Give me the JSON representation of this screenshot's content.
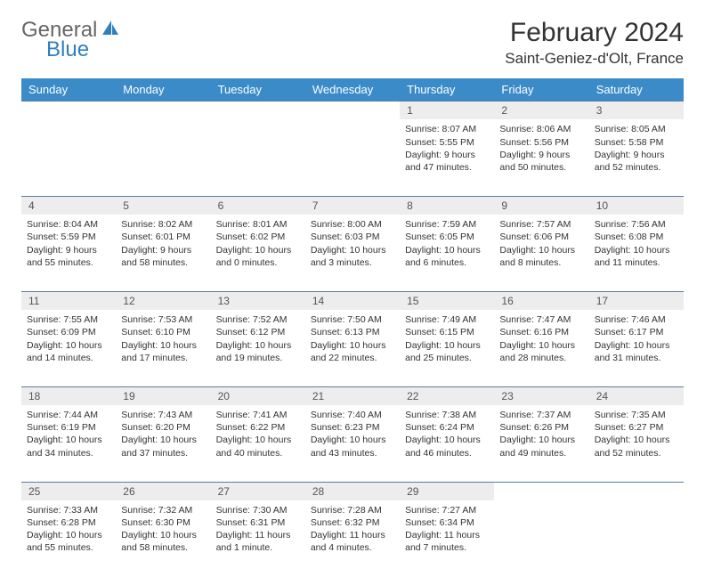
{
  "brand": {
    "first": "General",
    "second": "Blue"
  },
  "title": "February 2024",
  "location": "Saint-Geniez-d'Olt, France",
  "colors": {
    "header_bg": "#3b8bc9",
    "header_text": "#ffffff",
    "daynum_bg": "#ededed",
    "row_border": "#5a7ca0",
    "body_text": "#333333",
    "brand_blue": "#2f7fbf",
    "brand_grey": "#666666"
  },
  "weekdays": [
    "Sunday",
    "Monday",
    "Tuesday",
    "Wednesday",
    "Thursday",
    "Friday",
    "Saturday"
  ],
  "weeks": [
    [
      null,
      null,
      null,
      null,
      {
        "n": "1",
        "sunrise": "8:07 AM",
        "sunset": "5:55 PM",
        "daylight": "9 hours and 47 minutes."
      },
      {
        "n": "2",
        "sunrise": "8:06 AM",
        "sunset": "5:56 PM",
        "daylight": "9 hours and 50 minutes."
      },
      {
        "n": "3",
        "sunrise": "8:05 AM",
        "sunset": "5:58 PM",
        "daylight": "9 hours and 52 minutes."
      }
    ],
    [
      {
        "n": "4",
        "sunrise": "8:04 AM",
        "sunset": "5:59 PM",
        "daylight": "9 hours and 55 minutes."
      },
      {
        "n": "5",
        "sunrise": "8:02 AM",
        "sunset": "6:01 PM",
        "daylight": "9 hours and 58 minutes."
      },
      {
        "n": "6",
        "sunrise": "8:01 AM",
        "sunset": "6:02 PM",
        "daylight": "10 hours and 0 minutes."
      },
      {
        "n": "7",
        "sunrise": "8:00 AM",
        "sunset": "6:03 PM",
        "daylight": "10 hours and 3 minutes."
      },
      {
        "n": "8",
        "sunrise": "7:59 AM",
        "sunset": "6:05 PM",
        "daylight": "10 hours and 6 minutes."
      },
      {
        "n": "9",
        "sunrise": "7:57 AM",
        "sunset": "6:06 PM",
        "daylight": "10 hours and 8 minutes."
      },
      {
        "n": "10",
        "sunrise": "7:56 AM",
        "sunset": "6:08 PM",
        "daylight": "10 hours and 11 minutes."
      }
    ],
    [
      {
        "n": "11",
        "sunrise": "7:55 AM",
        "sunset": "6:09 PM",
        "daylight": "10 hours and 14 minutes."
      },
      {
        "n": "12",
        "sunrise": "7:53 AM",
        "sunset": "6:10 PM",
        "daylight": "10 hours and 17 minutes."
      },
      {
        "n": "13",
        "sunrise": "7:52 AM",
        "sunset": "6:12 PM",
        "daylight": "10 hours and 19 minutes."
      },
      {
        "n": "14",
        "sunrise": "7:50 AM",
        "sunset": "6:13 PM",
        "daylight": "10 hours and 22 minutes."
      },
      {
        "n": "15",
        "sunrise": "7:49 AM",
        "sunset": "6:15 PM",
        "daylight": "10 hours and 25 minutes."
      },
      {
        "n": "16",
        "sunrise": "7:47 AM",
        "sunset": "6:16 PM",
        "daylight": "10 hours and 28 minutes."
      },
      {
        "n": "17",
        "sunrise": "7:46 AM",
        "sunset": "6:17 PM",
        "daylight": "10 hours and 31 minutes."
      }
    ],
    [
      {
        "n": "18",
        "sunrise": "7:44 AM",
        "sunset": "6:19 PM",
        "daylight": "10 hours and 34 minutes."
      },
      {
        "n": "19",
        "sunrise": "7:43 AM",
        "sunset": "6:20 PM",
        "daylight": "10 hours and 37 minutes."
      },
      {
        "n": "20",
        "sunrise": "7:41 AM",
        "sunset": "6:22 PM",
        "daylight": "10 hours and 40 minutes."
      },
      {
        "n": "21",
        "sunrise": "7:40 AM",
        "sunset": "6:23 PM",
        "daylight": "10 hours and 43 minutes."
      },
      {
        "n": "22",
        "sunrise": "7:38 AM",
        "sunset": "6:24 PM",
        "daylight": "10 hours and 46 minutes."
      },
      {
        "n": "23",
        "sunrise": "7:37 AM",
        "sunset": "6:26 PM",
        "daylight": "10 hours and 49 minutes."
      },
      {
        "n": "24",
        "sunrise": "7:35 AM",
        "sunset": "6:27 PM",
        "daylight": "10 hours and 52 minutes."
      }
    ],
    [
      {
        "n": "25",
        "sunrise": "7:33 AM",
        "sunset": "6:28 PM",
        "daylight": "10 hours and 55 minutes."
      },
      {
        "n": "26",
        "sunrise": "7:32 AM",
        "sunset": "6:30 PM",
        "daylight": "10 hours and 58 minutes."
      },
      {
        "n": "27",
        "sunrise": "7:30 AM",
        "sunset": "6:31 PM",
        "daylight": "11 hours and 1 minute."
      },
      {
        "n": "28",
        "sunrise": "7:28 AM",
        "sunset": "6:32 PM",
        "daylight": "11 hours and 4 minutes."
      },
      {
        "n": "29",
        "sunrise": "7:27 AM",
        "sunset": "6:34 PM",
        "daylight": "11 hours and 7 minutes."
      },
      null,
      null
    ]
  ],
  "labels": {
    "sunrise": "Sunrise:",
    "sunset": "Sunset:",
    "daylight": "Daylight:"
  }
}
